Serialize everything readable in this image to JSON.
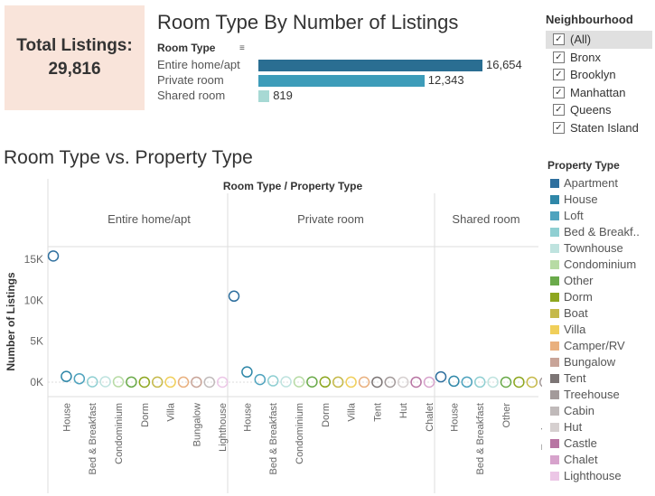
{
  "kpi": {
    "label": "Total Listings:",
    "value": "29,816"
  },
  "bar_chart": {
    "title": "Room Type By Number of Listings",
    "header": "Room Type",
    "sort_icon": "sort-icon"
  },
  "neighbourhood": {
    "title": "Neighbourhood",
    "items": [
      {
        "label": "(All)",
        "checked": true
      },
      {
        "label": "Bronx",
        "checked": true
      },
      {
        "label": "Brooklyn",
        "checked": true
      },
      {
        "label": "Manhattan",
        "checked": true
      },
      {
        "label": "Queens",
        "checked": true
      },
      {
        "label": "Staten Island",
        "checked": true
      }
    ]
  },
  "scatter": {
    "title": "Room Type vs. Property Type",
    "header": "Room Type  /  Property Type"
  },
  "legend": {
    "title": "Property Type",
    "items": [
      {
        "label": "Apartment",
        "color": "#2e6f9e"
      },
      {
        "label": "House",
        "color": "#2f87a8"
      },
      {
        "label": "Loft",
        "color": "#4fa3be"
      },
      {
        "label": "Bed & Breakf..",
        "color": "#8fcfd2"
      },
      {
        "label": "Townhouse",
        "color": "#bfe3df"
      },
      {
        "label": "Condominium",
        "color": "#b7dba4"
      },
      {
        "label": "Other",
        "color": "#6aaa4a"
      },
      {
        "label": "Dorm",
        "color": "#8da61e"
      },
      {
        "label": "Boat",
        "color": "#c5b94a"
      },
      {
        "label": "Villa",
        "color": "#f0cf5a"
      },
      {
        "label": "Camper/RV",
        "color": "#e9b07e"
      },
      {
        "label": "Bungalow",
        "color": "#c8a498"
      },
      {
        "label": "Tent",
        "color": "#7c7575"
      },
      {
        "label": "Treehouse",
        "color": "#a39a9a"
      },
      {
        "label": "Cabin",
        "color": "#c0baba"
      },
      {
        "label": "Hut",
        "color": "#d6d0d0"
      },
      {
        "label": "Castle",
        "color": "#b875a3"
      },
      {
        "label": "Chalet",
        "color": "#d7a3cc"
      },
      {
        "label": "Lighthouse",
        "color": "#ecc6e6"
      }
    ]
  },
  "chart_data": [
    {
      "type": "bar",
      "title": "Room Type By Number of Listings",
      "categories": [
        "Entire home/apt",
        "Private room",
        "Shared room"
      ],
      "values": [
        16654,
        12343,
        819
      ],
      "value_labels": [
        "16,654",
        "12,343",
        "819"
      ],
      "colors": [
        "#2a6e92",
        "#3d9cb9",
        "#a7d9d4"
      ]
    },
    {
      "type": "scatter",
      "title": "Room Type vs. Property Type",
      "ylabel": "Number of Listings",
      "ylim": [
        0,
        17000
      ],
      "yticks": [
        0,
        5000,
        10000,
        15000
      ],
      "ytick_labels": [
        "0K",
        "5K",
        "10K",
        "15K"
      ],
      "facets": [
        {
          "name": "Entire home/apt",
          "points": [
            {
              "type": "Apartment",
              "value": 15400
            },
            {
              "type": "House",
              "value": 700
            },
            {
              "type": "Loft",
              "value": 420
            },
            {
              "type": "Bed & Breakfast",
              "value": 40
            },
            {
              "type": "Townhouse",
              "value": 60
            },
            {
              "type": "Condominium",
              "value": 50
            },
            {
              "type": "Other",
              "value": 20
            },
            {
              "type": "Dorm",
              "value": 5
            },
            {
              "type": "Boat",
              "value": 10
            },
            {
              "type": "Villa",
              "value": 10
            },
            {
              "type": "Camper/RV",
              "value": 8
            },
            {
              "type": "Bungalow",
              "value": 6
            },
            {
              "type": "Cabin",
              "value": 4
            },
            {
              "type": "Lighthouse",
              "value": 1
            }
          ],
          "tick_labels": [
            "House",
            "Bed & Breakfast",
            "Condominium",
            "Dorm",
            "Villa",
            "Bungalow",
            "Lighthouse"
          ]
        },
        {
          "name": "Private room",
          "points": [
            {
              "type": "Apartment",
              "value": 10500
            },
            {
              "type": "House",
              "value": 1250
            },
            {
              "type": "Loft",
              "value": 320
            },
            {
              "type": "Bed & Breakfast",
              "value": 160
            },
            {
              "type": "Townhouse",
              "value": 50
            },
            {
              "type": "Condominium",
              "value": 40
            },
            {
              "type": "Other",
              "value": 30
            },
            {
              "type": "Dorm",
              "value": 25
            },
            {
              "type": "Boat",
              "value": 8
            },
            {
              "type": "Villa",
              "value": 8
            },
            {
              "type": "Camper/RV",
              "value": 10
            },
            {
              "type": "Tent",
              "value": 5
            },
            {
              "type": "Treehouse",
              "value": 3
            },
            {
              "type": "Hut",
              "value": 2
            },
            {
              "type": "Castle",
              "value": 2
            },
            {
              "type": "Chalet",
              "value": 1
            }
          ],
          "tick_labels": [
            "House",
            "Bed & Breakfast",
            "Condominium",
            "Dorm",
            "Villa",
            "Tent",
            "Hut",
            "Chalet"
          ]
        },
        {
          "name": "Shared room",
          "points": [
            {
              "type": "Apartment",
              "value": 650
            },
            {
              "type": "House",
              "value": 120
            },
            {
              "type": "Loft",
              "value": 20
            },
            {
              "type": "Bed & Breakfast",
              "value": 10
            },
            {
              "type": "Townhouse",
              "value": 6
            },
            {
              "type": "Other",
              "value": 5
            },
            {
              "type": "Dorm",
              "value": 4
            },
            {
              "type": "Boat",
              "value": 2
            },
            {
              "type": "Treehouse",
              "value": 1
            }
          ],
          "tick_labels": [
            "House",
            "Bed & Breakfast",
            "Other",
            "Treehouse"
          ]
        }
      ]
    }
  ]
}
